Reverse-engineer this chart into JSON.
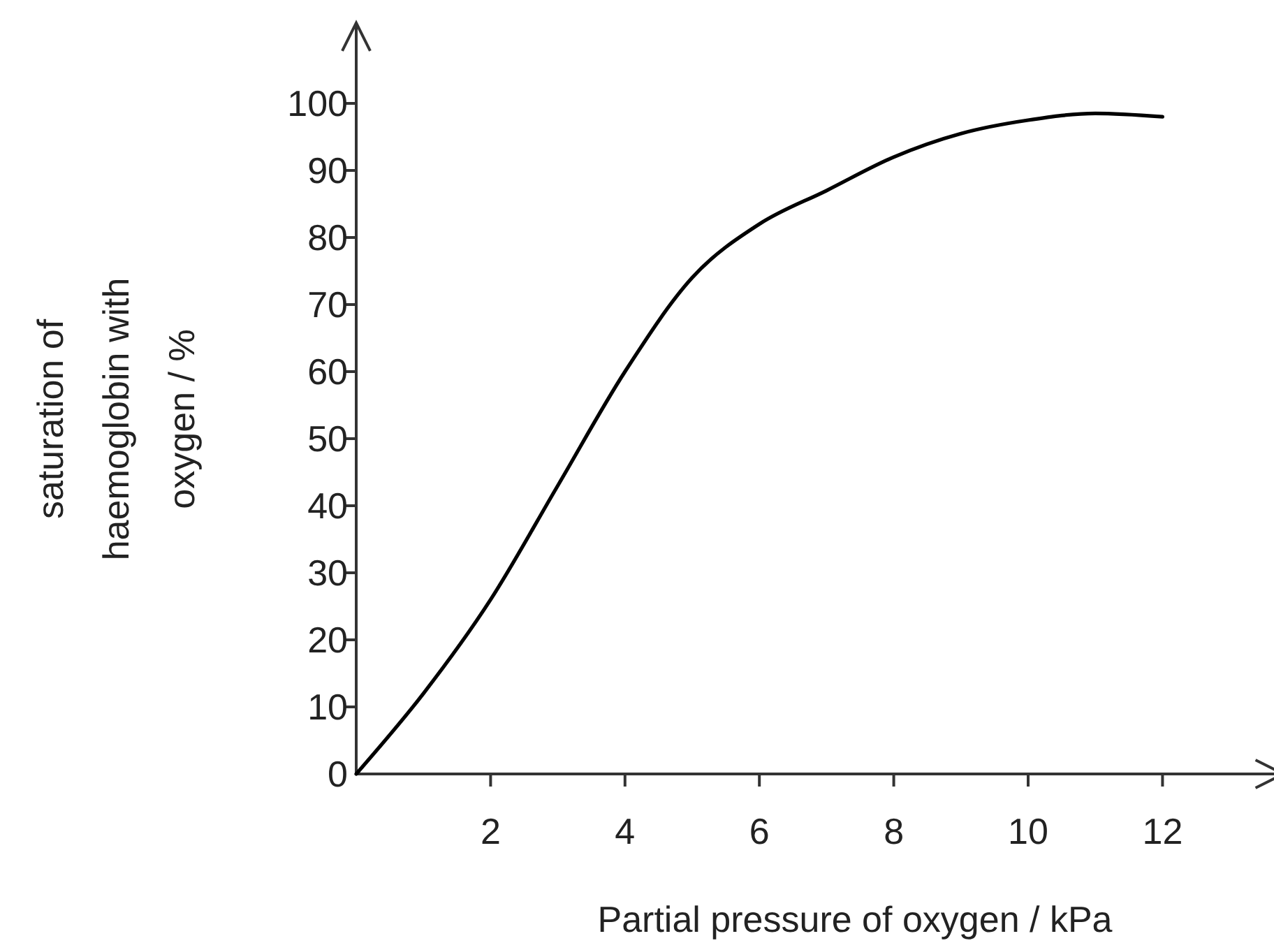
{
  "chart_data": {
    "type": "line",
    "xlabel": "Partial pressure of oxygen / kPa",
    "ylabel": "saturation of haemoglobin with oxygen / %",
    "x": [
      0,
      1,
      2,
      3,
      4,
      5,
      6,
      7,
      8,
      9,
      10,
      11,
      12
    ],
    "series": [
      {
        "color": "#000000",
        "values": [
          0,
          12,
          26,
          43,
          60,
          74,
          82,
          87,
          92,
          95.5,
          97.5,
          98.5,
          98
        ]
      }
    ],
    "xlim": [
      0,
      13.8
    ],
    "ylim": [
      0,
      112
    ],
    "xticks": [
      2,
      4,
      6,
      8,
      10,
      12
    ],
    "yticks": [
      {
        "value": 0,
        "label": "0"
      },
      10,
      20,
      30,
      40,
      50,
      60,
      70,
      80,
      90,
      100
    ],
    "grid": false,
    "marker": "none",
    "line_style": "solid"
  }
}
